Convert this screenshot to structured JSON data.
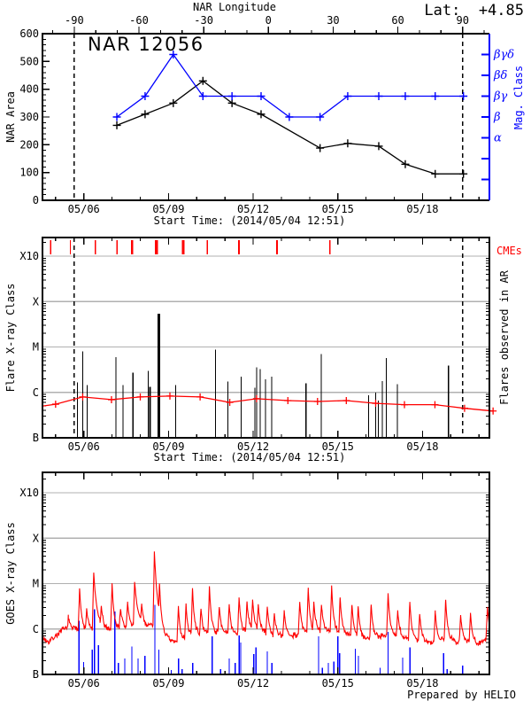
{
  "colors": {
    "red": "#ff0000",
    "blue": "#0000ff",
    "grid": "#b0b0b0",
    "axis": "#000000",
    "background": "#ffffff"
  },
  "chart_data": [
    {
      "id": "nar-area-panel",
      "type": "line",
      "title": "NAR 12056",
      "lat_annotation": "Lat:  +4.85",
      "ylabel": "NAR Area",
      "ylim": [
        0,
        600
      ],
      "yticks": [
        0,
        100,
        200,
        300,
        400,
        500,
        600
      ],
      "y_minor_step": 20,
      "xlabel": "Start Time: (2014/05/04 12:51)",
      "x_start_day": 4.535,
      "x_end_day": 20.37,
      "xticks": [
        {
          "day": 6,
          "label": "05/06"
        },
        {
          "day": 9,
          "label": "05/09"
        },
        {
          "day": 12,
          "label": "05/12"
        },
        {
          "day": 15,
          "label": "05/15"
        },
        {
          "day": 18,
          "label": "05/18"
        }
      ],
      "top_axis": {
        "label": "NAR Longitude",
        "major_ticks": [
          -90,
          -60,
          -30,
          0,
          30,
          60,
          90
        ],
        "minor_step": 10,
        "day_of_lon0": 12.54,
        "days_per_180deg": 13.76
      },
      "limb_crossing_days": [
        5.66,
        19.42
      ],
      "right_axis": {
        "label": "Mag. Class",
        "ticks": [
          {
            "area": 525,
            "label": "βγδ"
          },
          {
            "area": 450,
            "label": "βδ"
          },
          {
            "area": 375,
            "label": "βγ"
          },
          {
            "area": 300,
            "label": "β"
          },
          {
            "area": 225,
            "label": "α"
          },
          {
            "area": 150,
            "label": ""
          },
          {
            "area": 75,
            "label": ""
          }
        ]
      },
      "series": [
        {
          "name": "NAR Area",
          "color": "#000000",
          "x_days": [
            7.17,
            8.17,
            9.17,
            10.22,
            11.25,
            12.28,
            14.37,
            15.35,
            16.45,
            17.39,
            18.45,
            19.45
          ],
          "values": [
            270,
            310,
            350,
            430,
            350,
            310,
            188,
            205,
            195,
            130,
            95,
            95
          ]
        },
        {
          "name": "Magnetic Class",
          "color": "#0000ff",
          "x_days": [
            7.17,
            8.17,
            9.17,
            10.22,
            11.25,
            12.28,
            13.28,
            14.37,
            15.35,
            16.45,
            17.39,
            18.45,
            19.45
          ],
          "area_values": [
            300,
            375,
            525,
            375,
            375,
            375,
            300,
            300,
            375,
            375,
            375,
            375,
            375
          ],
          "class_values": [
            "β",
            "βγ",
            "βγδ",
            "βγ",
            "βγ",
            "βγ",
            "β",
            "β",
            "βγ",
            "βγ",
            "βγ",
            "βγ",
            "βγ"
          ]
        }
      ]
    },
    {
      "id": "flare-panel",
      "type": "event",
      "ylabel": "Flare X-ray Class",
      "right_label": "Flares observed in AR",
      "cme_label": "CMEs",
      "xlabel": "Start Time: (2014/05/04 12:51)",
      "ytick_labels": [
        "B",
        "C",
        "M",
        "X",
        "X10"
      ],
      "xticks": [
        {
          "day": 6,
          "label": "05/06"
        },
        {
          "day": 9,
          "label": "05/09"
        },
        {
          "day": 12,
          "label": "05/12"
        },
        {
          "day": 15,
          "label": "05/15"
        },
        {
          "day": 18,
          "label": "05/18"
        }
      ],
      "limb_crossing_days": [
        5.66,
        19.42
      ],
      "cmes": {
        "days": [
          4.82,
          5.52,
          6.41,
          7.17,
          7.71,
          8.57,
          9.52,
          10.38,
          11.49,
          12.85,
          14.72
        ],
        "weights": [
          1.2,
          0.8,
          1.2,
          1.2,
          2.0,
          2.6,
          2.0,
          1.2,
          1.6,
          1.6,
          1.2
        ]
      },
      "flares": [
        [
          5.77,
          1.22,
          1
        ],
        [
          5.96,
          1.9,
          1
        ],
        [
          6.12,
          1.16,
          1
        ],
        [
          7.14,
          1.78,
          1
        ],
        [
          7.39,
          1.16,
          1
        ],
        [
          7.74,
          1.43,
          1
        ],
        [
          8.28,
          1.47,
          1
        ],
        [
          8.34,
          1.12,
          1.8
        ],
        [
          8.66,
          2.73,
          2.4
        ],
        [
          9.26,
          1.16,
          1
        ],
        [
          10.66,
          1.94,
          1
        ],
        [
          11.11,
          1.24,
          1
        ],
        [
          11.58,
          1.35,
          1
        ],
        [
          12.06,
          1.1,
          1
        ],
        [
          12.12,
          1.55,
          1
        ],
        [
          12.25,
          1.51,
          1
        ],
        [
          12.44,
          1.29,
          1
        ],
        [
          12.66,
          1.35,
          1
        ],
        [
          13.87,
          1.2,
          1
        ],
        [
          14.41,
          1.84,
          1
        ],
        [
          16.09,
          0.94,
          1
        ],
        [
          16.34,
          1.0,
          1
        ],
        [
          16.44,
          0.82,
          1
        ],
        [
          16.57,
          1.25,
          1
        ],
        [
          16.72,
          1.76,
          1
        ],
        [
          17.11,
          1.18,
          1
        ],
        [
          18.92,
          1.59,
          1
        ]
      ],
      "background_flux": {
        "x_days": [
          4.55,
          5.0,
          5.96,
          6.98,
          8.0,
          9.05,
          10.12,
          11.17,
          12.12,
          13.23,
          14.28,
          15.3,
          16.34,
          17.36,
          18.44,
          19.49,
          20.5
        ],
        "values": [
          0.7,
          0.74,
          0.9,
          0.84,
          0.9,
          0.92,
          0.9,
          0.78,
          0.86,
          0.82,
          0.8,
          0.82,
          0.76,
          0.73,
          0.73,
          0.65,
          0.59
        ]
      }
    },
    {
      "id": "goes-panel",
      "type": "timeseries",
      "ylabel": "GOES X-ray Class",
      "credit": "Prepared by HELIO",
      "ytick_labels": [
        "B",
        "C",
        "M",
        "X",
        "X10"
      ],
      "xticks": [
        {
          "day": 6,
          "label": "05/06"
        },
        {
          "day": 9,
          "label": "05/09"
        },
        {
          "day": 12,
          "label": "05/12"
        },
        {
          "day": 15,
          "label": "05/15"
        },
        {
          "day": 18,
          "label": "05/18"
        }
      ],
      "long_channel": {
        "color": "#ff0000",
        "baseline": [
          [
            4.54,
            0.8
          ],
          [
            4.75,
            0.72
          ],
          [
            5.0,
            0.85
          ],
          [
            5.3,
            1.0
          ],
          [
            5.8,
            1.0
          ],
          [
            6.1,
            0.95
          ],
          [
            6.6,
            1.0
          ],
          [
            7.1,
            1.0
          ],
          [
            7.6,
            1.02
          ],
          [
            8.1,
            1.05
          ],
          [
            8.45,
            1.1
          ],
          [
            8.75,
            0.95
          ],
          [
            9.05,
            0.72
          ],
          [
            9.35,
            0.7
          ],
          [
            9.65,
            0.8
          ],
          [
            10.0,
            0.88
          ],
          [
            10.4,
            0.9
          ],
          [
            10.8,
            0.92
          ],
          [
            11.2,
            0.88
          ],
          [
            11.6,
            0.92
          ],
          [
            11.95,
            0.98
          ],
          [
            12.35,
            0.92
          ],
          [
            12.75,
            0.82
          ],
          [
            13.15,
            0.84
          ],
          [
            13.55,
            0.88
          ],
          [
            13.95,
            0.92
          ],
          [
            14.35,
            0.95
          ],
          [
            14.75,
            0.95
          ],
          [
            15.15,
            0.9
          ],
          [
            15.55,
            0.82
          ],
          [
            15.95,
            0.78
          ],
          [
            16.35,
            0.82
          ],
          [
            16.75,
            0.88
          ],
          [
            17.15,
            0.82
          ],
          [
            17.55,
            0.78
          ],
          [
            17.95,
            0.72
          ],
          [
            18.35,
            0.72
          ],
          [
            18.75,
            0.78
          ],
          [
            19.15,
            0.72
          ],
          [
            19.55,
            0.75
          ],
          [
            19.95,
            0.65
          ],
          [
            20.36,
            0.85
          ]
        ],
        "flare_peaks": [
          [
            5.45,
            1.25
          ],
          [
            5.85,
            1.9
          ],
          [
            6.1,
            1.45
          ],
          [
            6.35,
            2.25
          ],
          [
            6.62,
            1.5
          ],
          [
            7.0,
            2.0
          ],
          [
            7.3,
            1.45
          ],
          [
            7.55,
            1.6
          ],
          [
            7.8,
            2.05
          ],
          [
            8.05,
            1.55
          ],
          [
            8.5,
            2.7
          ],
          [
            8.68,
            2.0
          ],
          [
            9.35,
            1.5
          ],
          [
            9.62,
            1.55
          ],
          [
            9.85,
            1.9
          ],
          [
            10.15,
            1.45
          ],
          [
            10.45,
            1.95
          ],
          [
            10.8,
            1.5
          ],
          [
            11.15,
            1.55
          ],
          [
            11.5,
            1.7
          ],
          [
            11.78,
            1.6
          ],
          [
            11.98,
            1.65
          ],
          [
            12.18,
            1.55
          ],
          [
            12.5,
            1.5
          ],
          [
            12.75,
            1.35
          ],
          [
            13.1,
            1.4
          ],
          [
            13.65,
            1.6
          ],
          [
            13.95,
            1.9
          ],
          [
            14.15,
            1.6
          ],
          [
            14.42,
            1.55
          ],
          [
            14.78,
            1.95
          ],
          [
            15.08,
            1.7
          ],
          [
            15.5,
            1.55
          ],
          [
            15.72,
            1.5
          ],
          [
            16.18,
            1.55
          ],
          [
            16.78,
            1.8
          ],
          [
            17.12,
            1.4
          ],
          [
            17.55,
            1.6
          ],
          [
            17.9,
            1.35
          ],
          [
            18.45,
            1.4
          ],
          [
            18.82,
            1.65
          ],
          [
            19.35,
            1.3
          ],
          [
            19.7,
            1.35
          ],
          [
            20.3,
            1.5
          ]
        ]
      },
      "short_channel": {
        "color": "#0000ff",
        "spikes": [
          [
            5.83,
            1.18
          ],
          [
            5.99,
            0.27
          ],
          [
            6.3,
            0.55
          ],
          [
            6.38,
            1.43
          ],
          [
            6.52,
            0.64
          ],
          [
            7.1,
            1.39
          ],
          [
            7.22,
            0.25
          ],
          [
            7.45,
            0.35
          ],
          [
            7.7,
            0.61
          ],
          [
            7.92,
            0.35
          ],
          [
            8.16,
            0.41
          ],
          [
            8.52,
            1.53
          ],
          [
            8.66,
            0.55
          ],
          [
            9.1,
            0.1
          ],
          [
            9.36,
            0.35
          ],
          [
            9.48,
            0.12
          ],
          [
            9.86,
            0.25
          ],
          [
            10.55,
            0.84
          ],
          [
            10.85,
            0.12
          ],
          [
            11.15,
            0.35
          ],
          [
            11.36,
            0.25
          ],
          [
            11.5,
            0.86
          ],
          [
            11.56,
            0.7
          ],
          [
            12.02,
            0.45
          ],
          [
            12.1,
            0.6
          ],
          [
            12.5,
            0.51
          ],
          [
            12.66,
            0.25
          ],
          [
            14.32,
            0.84
          ],
          [
            14.45,
            0.15
          ],
          [
            14.66,
            0.25
          ],
          [
            14.86,
            0.28
          ],
          [
            15.0,
            0.84
          ],
          [
            15.06,
            0.47
          ],
          [
            15.62,
            0.57
          ],
          [
            15.73,
            0.41
          ],
          [
            16.5,
            0.15
          ],
          [
            16.78,
            0.94
          ],
          [
            17.3,
            0.37
          ],
          [
            17.56,
            0.6
          ],
          [
            18.75,
            0.47
          ],
          [
            18.87,
            0.12
          ],
          [
            19.42,
            0.2
          ]
        ]
      }
    }
  ]
}
